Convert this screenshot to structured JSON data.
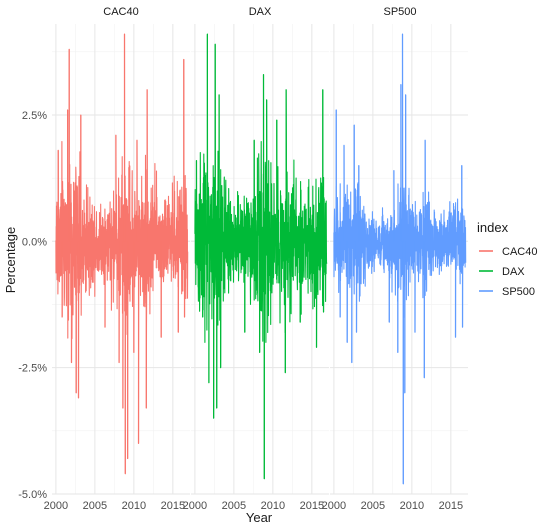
{
  "chart_data": {
    "type": "line",
    "facet_by": "index",
    "facets": [
      "CAC40",
      "DAX",
      "SP500"
    ],
    "xlabel": "Year",
    "ylabel": "Percentage",
    "x_ticks": [
      "2000",
      "2005",
      "2010",
      "2015"
    ],
    "x_range": [
      1999.5,
      2017.2
    ],
    "y_ticks": [
      "-5.0%",
      "-2.5%",
      "0.0%",
      "2.5%"
    ],
    "y_range": [
      -5.0,
      4.3
    ],
    "grid": true,
    "legend": {
      "title": "index",
      "placement": "right",
      "entries": [
        "CAC40",
        "DAX",
        "SP500"
      ]
    },
    "colors": {
      "CAC40": "#F8766D",
      "DAX": "#00BA38",
      "SP500": "#619CFF"
    },
    "series": [
      {
        "name": "CAC40",
        "typical_range": [
          -1.0,
          1.0
        ],
        "spikes": [
          {
            "x": 2000.3,
            "y": 1.8
          },
          {
            "x": 2000.8,
            "y": -1.5
          },
          {
            "x": 2001.5,
            "y": 2.6
          },
          {
            "x": 2001.7,
            "y": 3.8
          },
          {
            "x": 2002.0,
            "y": -2.4
          },
          {
            "x": 2002.6,
            "y": -3.0
          },
          {
            "x": 2002.9,
            "y": -3.1
          },
          {
            "x": 2003.2,
            "y": 2.5
          },
          {
            "x": 2006.3,
            "y": -1.7
          },
          {
            "x": 2007.7,
            "y": 2.1
          },
          {
            "x": 2008.1,
            "y": -2.4
          },
          {
            "x": 2008.6,
            "y": -3.3
          },
          {
            "x": 2008.8,
            "y": 4.1
          },
          {
            "x": 2008.9,
            "y": -4.6
          },
          {
            "x": 2009.2,
            "y": -4.3
          },
          {
            "x": 2010.0,
            "y": -2.2
          },
          {
            "x": 2010.4,
            "y": 2.0
          },
          {
            "x": 2010.6,
            "y": -4.0
          },
          {
            "x": 2011.6,
            "y": -3.3
          },
          {
            "x": 2011.7,
            "y": 3.0
          },
          {
            "x": 2013.5,
            "y": -1.9
          },
          {
            "x": 2015.7,
            "y": -1.8
          },
          {
            "x": 2016.4,
            "y": 3.6
          },
          {
            "x": 2016.5,
            "y": -1.5
          }
        ]
      },
      {
        "name": "DAX",
        "typical_range": [
          -1.1,
          1.1
        ],
        "spikes": [
          {
            "x": 2000.2,
            "y": 1.6
          },
          {
            "x": 2001.0,
            "y": -1.5
          },
          {
            "x": 2001.6,
            "y": 4.1
          },
          {
            "x": 2001.8,
            "y": -2.8
          },
          {
            "x": 2002.4,
            "y": -3.5
          },
          {
            "x": 2002.6,
            "y": 3.9
          },
          {
            "x": 2002.8,
            "y": -3.3
          },
          {
            "x": 2003.1,
            "y": 2.9
          },
          {
            "x": 2003.3,
            "y": -2.5
          },
          {
            "x": 2006.4,
            "y": -1.8
          },
          {
            "x": 2007.6,
            "y": 2.0
          },
          {
            "x": 2008.3,
            "y": -2.2
          },
          {
            "x": 2008.8,
            "y": 3.3
          },
          {
            "x": 2008.9,
            "y": -4.7
          },
          {
            "x": 2009.2,
            "y": 2.8
          },
          {
            "x": 2010.5,
            "y": 2.4
          },
          {
            "x": 2011.6,
            "y": -2.6
          },
          {
            "x": 2011.7,
            "y": 3.0
          },
          {
            "x": 2013.5,
            "y": -1.6
          },
          {
            "x": 2015.6,
            "y": -2.1
          },
          {
            "x": 2016.4,
            "y": 3.0
          },
          {
            "x": 2016.5,
            "y": -1.4
          }
        ]
      },
      {
        "name": "SP500",
        "typical_range": [
          -0.7,
          0.7
        ],
        "spikes": [
          {
            "x": 2000.3,
            "y": 2.6
          },
          {
            "x": 2000.8,
            "y": -1.5
          },
          {
            "x": 2001.3,
            "y": 1.9
          },
          {
            "x": 2001.7,
            "y": -2.0
          },
          {
            "x": 2002.3,
            "y": -2.4
          },
          {
            "x": 2002.6,
            "y": 2.3
          },
          {
            "x": 2002.9,
            "y": -1.8
          },
          {
            "x": 2003.2,
            "y": 1.5
          },
          {
            "x": 2007.1,
            "y": -1.6
          },
          {
            "x": 2007.7,
            "y": 1.4
          },
          {
            "x": 2008.2,
            "y": -2.2
          },
          {
            "x": 2008.6,
            "y": 3.1
          },
          {
            "x": 2008.8,
            "y": 4.1
          },
          {
            "x": 2008.9,
            "y": -4.8
          },
          {
            "x": 2009.1,
            "y": -3.0
          },
          {
            "x": 2009.2,
            "y": 2.9
          },
          {
            "x": 2010.4,
            "y": -1.8
          },
          {
            "x": 2011.6,
            "y": -2.7
          },
          {
            "x": 2011.7,
            "y": 2.0
          },
          {
            "x": 2015.6,
            "y": -1.9
          },
          {
            "x": 2016.4,
            "y": 1.5
          },
          {
            "x": 2016.5,
            "y": -1.7
          }
        ]
      }
    ]
  }
}
